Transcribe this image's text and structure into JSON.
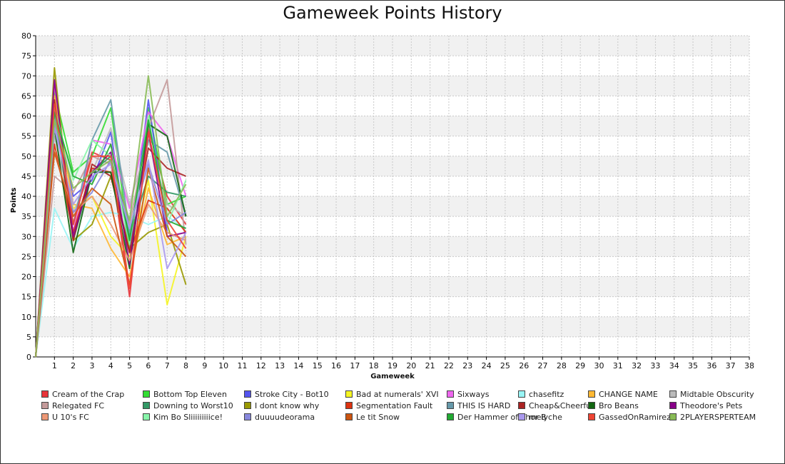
{
  "chart_data": {
    "type": "line",
    "title": "Gameweek Points History",
    "xlabel": "Gameweek",
    "ylabel": "Points",
    "x_ticks": [
      "1",
      "2",
      "3",
      "4",
      "5",
      "6",
      "7",
      "8",
      "9",
      "10",
      "11",
      "12",
      "13",
      "14",
      "15",
      "16",
      "17",
      "18",
      "19",
      "20",
      "21",
      "22",
      "23",
      "24",
      "25",
      "26",
      "27",
      "28",
      "29",
      "30",
      "31",
      "32",
      "33",
      "34",
      "35",
      "36",
      "37",
      "38"
    ],
    "y_ticks": [
      "0",
      "5",
      "10",
      "15",
      "20",
      "25",
      "30",
      "35",
      "40",
      "45",
      "50",
      "55",
      "60",
      "65",
      "70",
      "75",
      "80"
    ],
    "ylim": [
      0,
      80
    ],
    "xlim": [
      0,
      38
    ],
    "grid": true,
    "legend_position": "bottom",
    "x": [
      0,
      1,
      2,
      3,
      4,
      5,
      6,
      7,
      8
    ],
    "series": [
      {
        "name": "Cream of the Crap",
        "color": "#e8343a",
        "values": [
          0,
          67,
          33,
          51,
          49,
          15,
          57,
          40,
          33
        ]
      },
      {
        "name": "Bottom Top Eleven",
        "color": "#33dd33",
        "values": [
          0,
          66,
          46,
          50,
          62,
          28,
          62,
          38,
          40
        ]
      },
      {
        "name": "Stroke City - Bot10",
        "color": "#5555ee",
        "values": [
          0,
          63,
          40,
          44,
          56,
          26,
          64,
          31,
          29
        ]
      },
      {
        "name": "Bad at numerals' XVI",
        "color": "#f5f522",
        "values": [
          0,
          60,
          37,
          40,
          30,
          25,
          44,
          13,
          30
        ]
      },
      {
        "name": "Sixways",
        "color": "#ee66ee",
        "values": [
          0,
          68,
          31,
          54,
          53,
          37,
          61,
          55,
          40
        ]
      },
      {
        "name": "chasefitz",
        "color": "#99f5f5",
        "values": [
          0,
          37,
          27,
          35,
          36,
          35,
          33,
          35,
          32
        ]
      },
      {
        "name": "CHANGE NAME",
        "color": "#ffb833",
        "values": [
          0,
          65,
          38,
          37,
          27,
          20,
          42,
          28,
          30
        ]
      },
      {
        "name": "Midtable Obscurity",
        "color": "#bbbbbb",
        "values": [
          0,
          55,
          36,
          46,
          57,
          38,
          54,
          38,
          35
        ]
      },
      {
        "name": "Relegated FC",
        "color": "#c49a9a",
        "values": [
          0,
          45,
          41,
          50,
          48,
          33,
          57,
          69,
          28
        ]
      },
      {
        "name": "Downing to Worst10",
        "color": "#339966",
        "values": [
          0,
          62,
          29,
          46,
          50,
          30,
          45,
          41,
          40
        ]
      },
      {
        "name": "I dont know why",
        "color": "#999900",
        "values": [
          0,
          72,
          29,
          33,
          45,
          27,
          31,
          33,
          18
        ]
      },
      {
        "name": "Segmentation Fault",
        "color": "#dd3311",
        "values": [
          0,
          53,
          31,
          47,
          46,
          26,
          39,
          37,
          31
        ]
      },
      {
        "name": "THIS IS HARD",
        "color": "#6699aa",
        "values": [
          0,
          61,
          33,
          54,
          64,
          31,
          54,
          51,
          35
        ]
      },
      {
        "name": "Cheap&Cheerful",
        "color": "#aa2222",
        "values": [
          0,
          64,
          29,
          48,
          45,
          26,
          52,
          47,
          45
        ]
      },
      {
        "name": "Bro Beans",
        "color": "#116611",
        "values": [
          0,
          57,
          26,
          46,
          46,
          22,
          58,
          55,
          35
        ]
      },
      {
        "name": "Theodore's Pets",
        "color": "#880088",
        "values": [
          0,
          69,
          30,
          46,
          51,
          23,
          56,
          30,
          31
        ]
      },
      {
        "name": "U 10's FC",
        "color": "#ee9977",
        "values": [
          0,
          51,
          36,
          40,
          33,
          24,
          38,
          31,
          29
        ]
      },
      {
        "name": "Kim Bo Sliiiiiiiiice!",
        "color": "#88f5aa",
        "values": [
          0,
          62,
          44,
          54,
          50,
          28,
          60,
          33,
          44
        ]
      },
      {
        "name": "duuuudeorama",
        "color": "#8888dd",
        "values": [
          0,
          58,
          36,
          41,
          49,
          32,
          48,
          33,
          36
        ]
      },
      {
        "name": "Le tit Snow",
        "color": "#cc5511",
        "values": [
          0,
          51,
          35,
          42,
          38,
          18,
          47,
          30,
          25
        ]
      },
      {
        "name": "Der Hammer of Thor B",
        "color": "#22aa33",
        "values": [
          0,
          61,
          45,
          43,
          53,
          29,
          59,
          34,
          32
        ]
      },
      {
        "name": "melyche",
        "color": "#aa99ee",
        "values": [
          0,
          57,
          38,
          45,
          48,
          32,
          49,
          22,
          31
        ]
      },
      {
        "name": "GassedOnRamirez",
        "color": "#ee4433",
        "values": [
          0,
          63,
          33,
          50,
          50,
          17,
          56,
          34,
          27
        ]
      },
      {
        "name": "2PLAYERSPERTEAM",
        "color": "#88bb55",
        "values": [
          0,
          59,
          42,
          46,
          49,
          34,
          70,
          35,
          43
        ]
      }
    ]
  }
}
